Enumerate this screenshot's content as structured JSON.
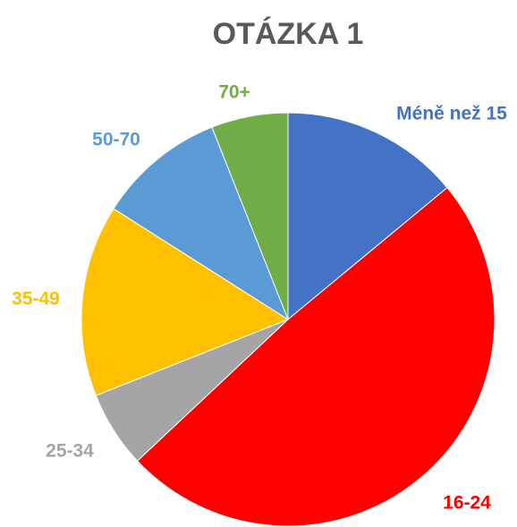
{
  "chart_data": {
    "type": "pie",
    "title": "OTÁZKA 1",
    "categories": [
      "Méně než 15",
      "16-24",
      "25-34",
      "35-49",
      "50-70",
      "70+"
    ],
    "values": [
      14,
      49,
      6,
      15,
      10,
      6
    ],
    "colors": [
      "#4472c4",
      "#ff0000",
      "#a5a5a5",
      "#ffc000",
      "#5b9bd5",
      "#70ad47"
    ]
  }
}
